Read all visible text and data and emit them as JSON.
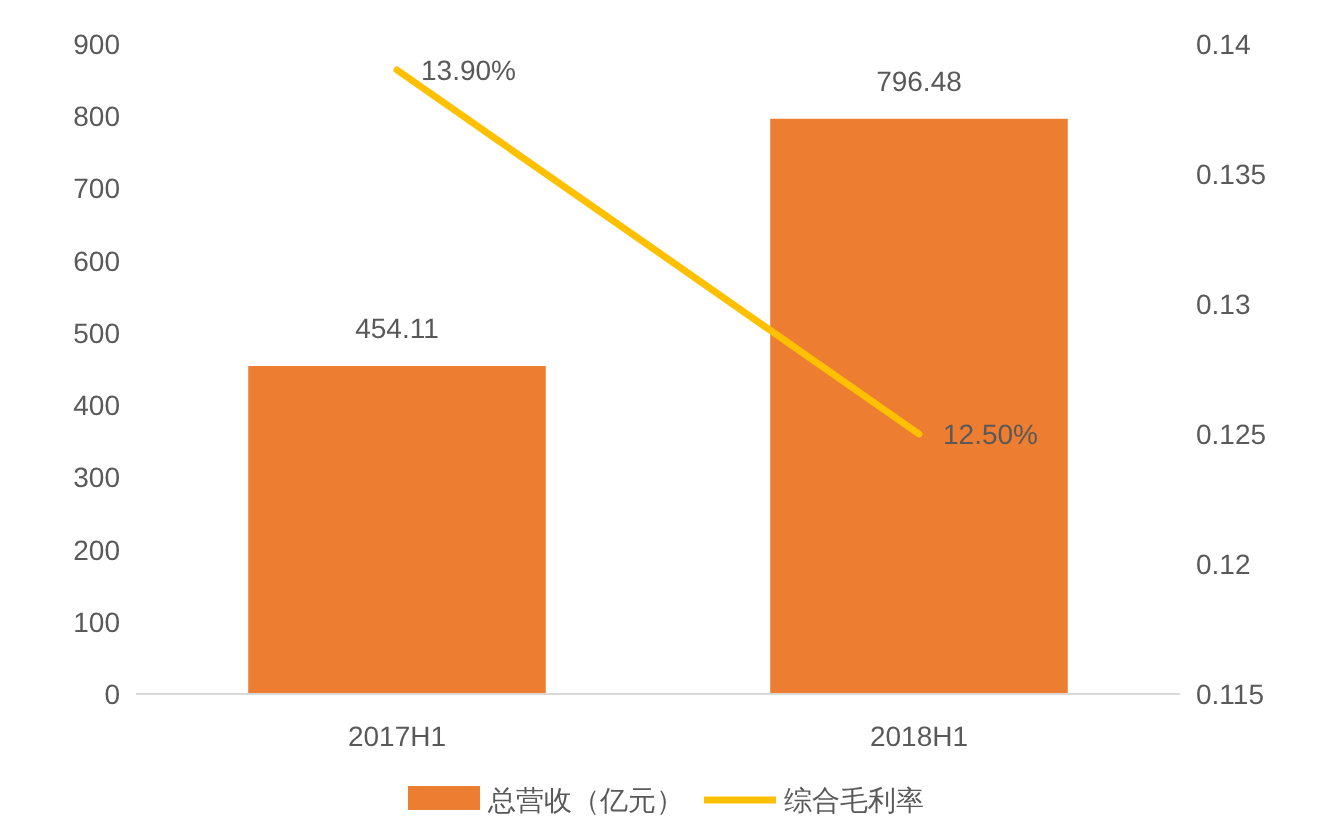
{
  "chart_data": {
    "type": "bar",
    "categories": [
      "2017H1",
      "2018H1"
    ],
    "series": [
      {
        "name": "总营收（亿元）",
        "color": "#ed7d31",
        "values": [
          454.11,
          796.48
        ],
        "value_labels": [
          "454.11",
          "796.48"
        ]
      },
      {
        "name": "综合毛利率",
        "type": "line",
        "axis": "y2",
        "color": "#ffc000",
        "values": [
          0.139,
          0.125
        ],
        "value_labels": [
          "13.90%",
          "12.50%"
        ]
      }
    ],
    "ylim": [
      0,
      900
    ],
    "yticks": [
      0,
      100,
      200,
      300,
      400,
      500,
      600,
      700,
      800,
      900
    ],
    "y2lim": [
      0.115,
      0.14
    ],
    "y2ticks": [
      0.115,
      0.12,
      0.125,
      0.13,
      0.135,
      0.14
    ],
    "grid": false,
    "legend": "bottom",
    "marker": "none",
    "line_style": "solid"
  }
}
